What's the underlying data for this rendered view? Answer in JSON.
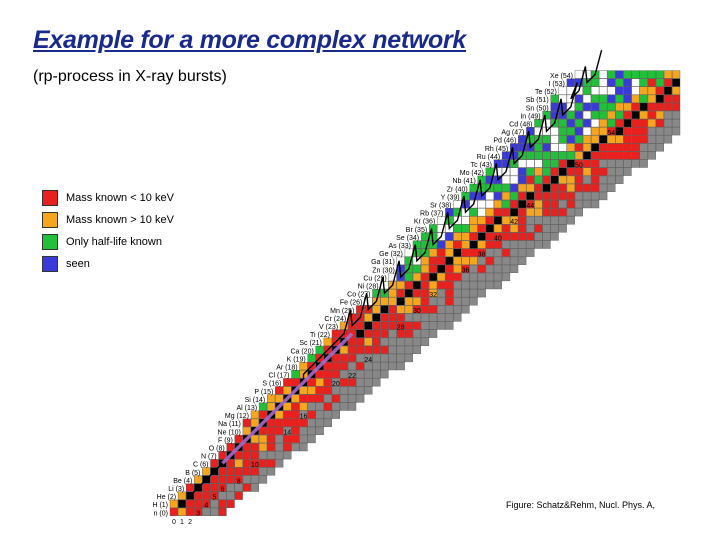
{
  "title": "Example for a more complex network",
  "subtitle": "(rp-process in X-ray bursts)",
  "legend": [
    {
      "label": "Mass known < 10 keV",
      "color": "#e8201e"
    },
    {
      "label": "Mass known > 10 keV",
      "color": "#f5a51e"
    },
    {
      "label": "Only half-life known",
      "color": "#22c03a"
    },
    {
      "label": "seen",
      "color": "#3a3ad8"
    }
  ],
  "colors": {
    "stable": "#000000",
    "unknown": "#888888",
    "path": "#000000",
    "highlight": "#b070d8"
  },
  "caption": "Figure: Schatz&Rehm, Nucl. Phys. A,",
  "elements": [
    {
      "label": "n (0)",
      "z": 0
    },
    {
      "label": "H (1)",
      "z": 1
    },
    {
      "label": "He (2)",
      "z": 2
    },
    {
      "label": "Li (3)",
      "z": 3
    },
    {
      "label": "Be (4)",
      "z": 4
    },
    {
      "label": "B (5)",
      "z": 5
    },
    {
      "label": "C (6)",
      "z": 6
    },
    {
      "label": "N (7)",
      "z": 7
    },
    {
      "label": "O (8)",
      "z": 8
    },
    {
      "label": "F (9)",
      "z": 9
    },
    {
      "label": "Ne (10)",
      "z": 10
    },
    {
      "label": "Na (11)",
      "z": 11
    },
    {
      "label": "Mg (12)",
      "z": 12
    },
    {
      "label": "Al (13)",
      "z": 13
    },
    {
      "label": "Si (14)",
      "z": 14
    },
    {
      "label": "P (15)",
      "z": 15
    },
    {
      "label": "S (16)",
      "z": 16
    },
    {
      "label": "Cl (17)",
      "z": 17
    },
    {
      "label": "Ar (18)",
      "z": 18
    },
    {
      "label": "K (19)",
      "z": 19
    },
    {
      "label": "Ca (20)",
      "z": 20
    },
    {
      "label": "Sc (21)",
      "z": 21
    },
    {
      "label": "Ti (22)",
      "z": 22
    },
    {
      "label": "V (23)",
      "z": 23
    },
    {
      "label": "Cr (24)",
      "z": 24
    },
    {
      "label": "Mn (25)",
      "z": 25
    },
    {
      "label": "Fe (26)",
      "z": 26
    },
    {
      "label": "Co (27)",
      "z": 27
    },
    {
      "label": "Ni (28)",
      "z": 28
    },
    {
      "label": "Cu (29)",
      "z": 29
    },
    {
      "label": "Zn (30)",
      "z": 30
    },
    {
      "label": "Ga (31)",
      "z": 31
    },
    {
      "label": "Ge (32)",
      "z": 32
    },
    {
      "label": "As (33)",
      "z": 33
    },
    {
      "label": "Se (34)",
      "z": 34
    },
    {
      "label": "Br (35)",
      "z": 35
    },
    {
      "label": "Kr (36)",
      "z": 36
    },
    {
      "label": "Rb (37)",
      "z": 37
    },
    {
      "label": "Sr (38)",
      "z": 38
    },
    {
      "label": "Y (39)",
      "z": 39
    },
    {
      "label": "Zr (40)",
      "z": 40
    },
    {
      "label": "Nb (41)",
      "z": 41
    },
    {
      "label": "Mo (42)",
      "z": 42
    },
    {
      "label": "Tc (43)",
      "z": 43
    },
    {
      "label": "Ru (44)",
      "z": 44
    },
    {
      "label": "Rh (45)",
      "z": 45
    },
    {
      "label": "Pd (46)",
      "z": 46
    },
    {
      "label": "Ag (47)",
      "z": 47
    },
    {
      "label": "Cd (48)",
      "z": 48
    },
    {
      "label": "In (49)",
      "z": 49
    },
    {
      "label": "Sn (50)",
      "z": 50
    },
    {
      "label": "Sb (51)",
      "z": 51
    },
    {
      "label": "Te (52)",
      "z": 52
    },
    {
      "label": "I (53)",
      "z": 53
    },
    {
      "label": "Xe (54)",
      "z": 54
    }
  ],
  "n_labels": [
    {
      "text": "0",
      "n": 0
    },
    {
      "text": "1",
      "n": 1
    },
    {
      "text": "2",
      "n": 2
    },
    {
      "text": "3",
      "n": 3
    },
    {
      "text": "4",
      "n": 4
    },
    {
      "text": "5",
      "n": 5
    },
    {
      "text": "6",
      "n": 6
    },
    {
      "text": "8",
      "n": 8
    },
    {
      "text": "10",
      "n": 10
    },
    {
      "text": "14",
      "n": 14
    },
    {
      "text": "16",
      "n": 16
    },
    {
      "text": "20",
      "n": 20
    },
    {
      "text": "22",
      "n": 22
    },
    {
      "text": "24",
      "n": 24
    },
    {
      "text": "28",
      "n": 28
    },
    {
      "text": "30",
      "n": 30
    },
    {
      "text": "32",
      "n": 32
    },
    {
      "text": "36",
      "n": 36
    },
    {
      "text": "38",
      "n": 38
    },
    {
      "text": "40",
      "n": 40
    },
    {
      "text": "42",
      "n": 42
    },
    {
      "text": "44",
      "n": 44
    },
    {
      "text": "46",
      "n": 46
    },
    {
      "text": "48",
      "n": 48
    },
    {
      "text": "50",
      "n": 50
    },
    {
      "text": "52",
      "n": 52
    },
    {
      "text": "54",
      "n": 54
    }
  ]
}
